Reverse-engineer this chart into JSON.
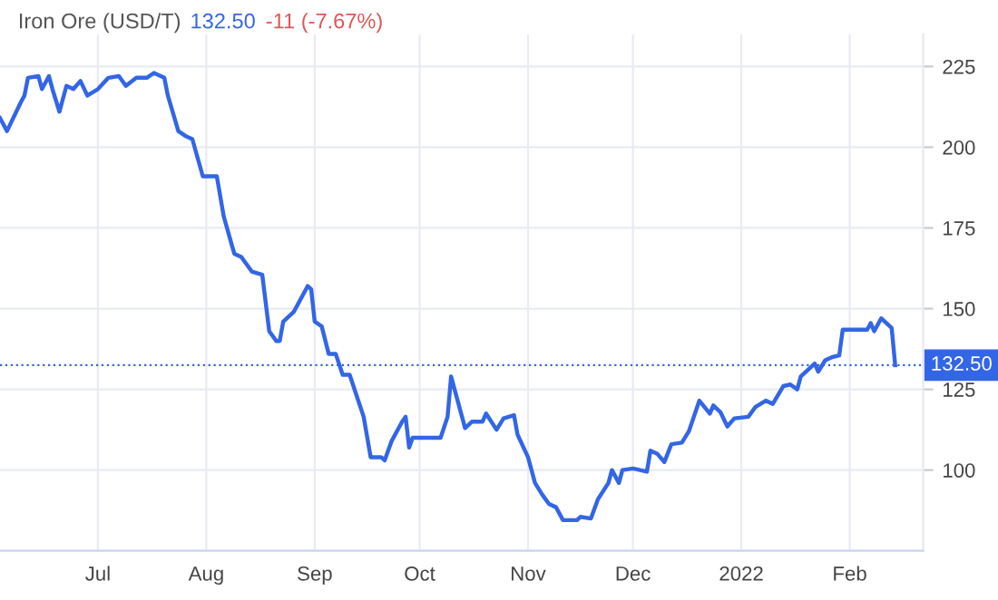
{
  "chart_data": {
    "type": "line",
    "title": "Iron Ore (USD/T)",
    "annotations": [
      "132.50",
      "-11 (-7.67%)"
    ],
    "x": [
      "2021-06-03",
      "2021-06-05",
      "2021-06-09",
      "2021-06-10",
      "2021-06-11",
      "2021-06-14",
      "2021-06-15",
      "2021-06-17",
      "2021-06-18",
      "2021-06-20",
      "2021-06-22",
      "2021-06-24",
      "2021-06-26",
      "2021-06-28",
      "2021-07-01",
      "2021-07-04",
      "2021-07-07",
      "2021-07-09",
      "2021-07-12",
      "2021-07-15",
      "2021-07-17",
      "2021-07-20",
      "2021-07-21",
      "2021-07-24",
      "2021-07-26",
      "2021-07-28",
      "2021-07-31",
      "2021-08-04",
      "2021-08-06",
      "2021-08-09",
      "2021-08-11",
      "2021-08-14",
      "2021-08-17",
      "2021-08-19",
      "2021-08-21",
      "2021-08-22",
      "2021-08-23",
      "2021-08-26",
      "2021-08-29",
      "2021-08-30",
      "2021-08-31",
      "2021-09-01",
      "2021-09-03",
      "2021-09-05",
      "2021-09-07",
      "2021-09-09",
      "2021-09-11",
      "2021-09-13",
      "2021-09-15",
      "2021-09-17",
      "2021-09-20",
      "2021-09-21",
      "2021-09-23",
      "2021-09-26",
      "2021-09-27",
      "2021-09-28",
      "2021-09-29",
      "2021-10-07",
      "2021-10-09",
      "2021-10-10",
      "2021-10-12",
      "2021-10-14",
      "2021-10-16",
      "2021-10-19",
      "2021-10-20",
      "2021-10-23",
      "2021-10-25",
      "2021-10-28",
      "2021-10-29",
      "2021-11-01",
      "2021-11-03",
      "2021-11-05",
      "2021-11-07",
      "2021-11-09",
      "2021-11-11",
      "2021-11-15",
      "2021-11-16",
      "2021-11-19",
      "2021-11-21",
      "2021-11-24",
      "2021-11-25",
      "2021-11-27",
      "2021-11-28",
      "2021-12-01",
      "2021-12-05",
      "2021-12-06",
      "2021-12-08",
      "2021-12-10",
      "2021-12-12",
      "2021-12-15",
      "2021-12-17",
      "2021-12-20",
      "2021-12-23",
      "2021-12-24",
      "2021-12-26",
      "2021-12-28",
      "2021-12-30",
      "2022-01-03",
      "2022-01-05",
      "2022-01-08",
      "2022-01-10",
      "2022-01-13",
      "2022-01-15",
      "2022-01-17",
      "2022-01-18",
      "2022-01-22",
      "2022-01-23",
      "2022-01-25",
      "2022-01-27",
      "2022-01-29",
      "2022-01-30",
      "2022-02-06",
      "2022-02-07",
      "2022-02-08",
      "2022-02-10",
      "2022-02-13",
      "2022-02-14"
    ],
    "series": [
      {
        "color": "#3366e6",
        "values": [
          209,
          205,
          214,
          216,
          221.5,
          222,
          218,
          222,
          218,
          211,
          219,
          218,
          220.5,
          216,
          218,
          221.5,
          222,
          219,
          221.5,
          221.5,
          223,
          221.5,
          216,
          205,
          203.5,
          202.5,
          191,
          191,
          178.5,
          167,
          166,
          161.5,
          160.5,
          143,
          140,
          140,
          146,
          149,
          155,
          157,
          156,
          146,
          144.5,
          136,
          136,
          129.5,
          129.5,
          123,
          116.5,
          104,
          104,
          103,
          109,
          115,
          116.5,
          107,
          110,
          110,
          116.5,
          129,
          121,
          113,
          115,
          115,
          117.5,
          112.5,
          116,
          117,
          111,
          104,
          96,
          92.5,
          89.5,
          88.5,
          84.5,
          84.5,
          85.5,
          85,
          91,
          96,
          100,
          96,
          100,
          100.5,
          99.5,
          106,
          105,
          102.5,
          108,
          108.5,
          112,
          121.5,
          117.5,
          120,
          118,
          113.5,
          116,
          116.5,
          119.5,
          121.5,
          120.5,
          126,
          126.5,
          125,
          129,
          133,
          130.5,
          134,
          135,
          135.5,
          143.5,
          143.5,
          145.5,
          143,
          147,
          144,
          132.5
        ]
      }
    ],
    "xlim": [
      "2021-06-03",
      "2022-02-22"
    ],
    "xticks": [
      {
        "value": "2021-07-01",
        "label": "Jul"
      },
      {
        "value": "2021-08-01",
        "label": "Aug"
      },
      {
        "value": "2021-09-01",
        "label": "Sep"
      },
      {
        "value": "2021-10-01",
        "label": "Oct"
      },
      {
        "value": "2021-11-01",
        "label": "Nov"
      },
      {
        "value": "2021-12-01",
        "label": "Dec"
      },
      {
        "value": "2022-01-01",
        "label": "2022"
      },
      {
        "value": "2022-02-01",
        "label": "Feb"
      }
    ],
    "ylim": [
      75,
      235
    ],
    "yticks": [
      100,
      125,
      150,
      175,
      200,
      225
    ],
    "ref_lines": [
      {
        "axis": "y",
        "value": 132.5,
        "label": "132.50",
        "color": "#3366e6",
        "line_style": "dotted"
      }
    ],
    "grid": true,
    "legend": false,
    "marker": "none",
    "line_style": "solid"
  }
}
